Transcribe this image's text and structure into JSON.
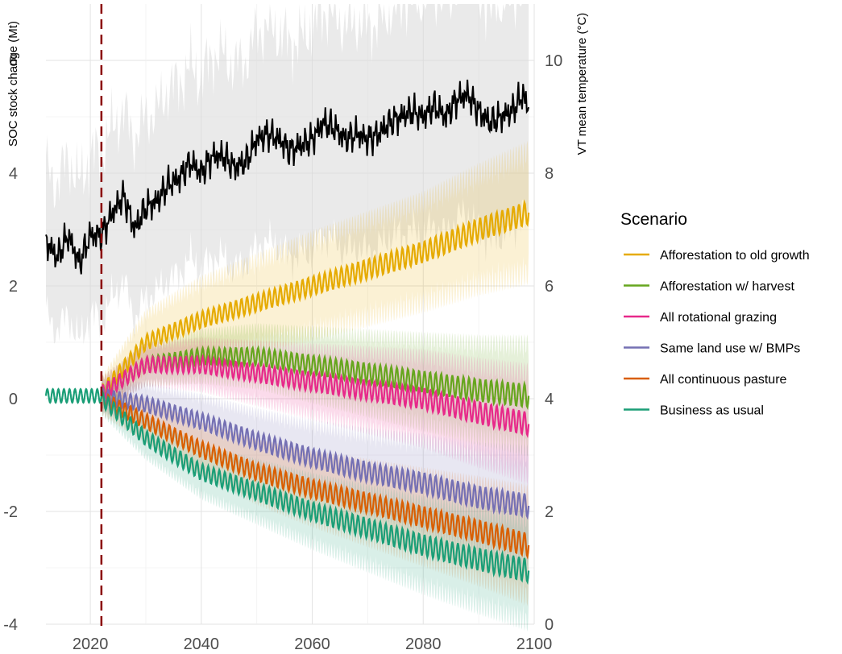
{
  "chart_data": {
    "type": "line",
    "x_label": "",
    "y_label": "SOC stock change (Mt)",
    "y2_label": "VT mean temperature (°C)",
    "x_range": [
      2012,
      2100
    ],
    "y_range": [
      -4,
      7
    ],
    "y2_range": [
      0,
      11
    ],
    "x_ticks": [
      "2020",
      "2040",
      "2060",
      "2080",
      "2100"
    ],
    "y_ticks": [
      "-4",
      "-2",
      "0",
      "2",
      "4",
      "6"
    ],
    "y2_ticks": [
      "0",
      "2",
      "4",
      "6",
      "8",
      "10"
    ],
    "grid": true,
    "reference_line": {
      "x": 2022,
      "style": "dashed",
      "color": "#8b0000"
    },
    "legend": {
      "title": "Scenario",
      "position": "right",
      "items": [
        {
          "name": "Afforestation to old growth",
          "color": "#e6ab02"
        },
        {
          "name": "Afforestation w/ harvest",
          "color": "#66a61e"
        },
        {
          "name": "All rotational grazing",
          "color": "#e7298a"
        },
        {
          "name": "Same land use w/ BMPs",
          "color": "#7570b3"
        },
        {
          "name": "All continuous pasture",
          "color": "#d95f02"
        },
        {
          "name": "Business as usual",
          "color": "#1b9e77"
        }
      ]
    },
    "series": [
      {
        "name": "Afforestation to old growth",
        "color": "#e6ab02",
        "x": [
          2022,
          2030,
          2040,
          2050,
          2060,
          2070,
          2080,
          2090,
          2099
        ],
        "y": [
          0.1,
          1.0,
          1.4,
          1.7,
          2.0,
          2.3,
          2.6,
          3.0,
          3.3
        ],
        "band": [
          0.3,
          0.6,
          0.8,
          0.9,
          1.0,
          1.05,
          1.1,
          1.2,
          1.3
        ]
      },
      {
        "name": "Afforestation w/ harvest",
        "color": "#66a61e",
        "x": [
          2022,
          2030,
          2040,
          2050,
          2060,
          2070,
          2080,
          2090,
          2099
        ],
        "y": [
          0.1,
          0.6,
          0.75,
          0.75,
          0.6,
          0.45,
          0.3,
          0.15,
          0.05
        ],
        "band": [
          0.3,
          0.4,
          0.5,
          0.6,
          0.7,
          0.8,
          0.9,
          1.0,
          1.1
        ]
      },
      {
        "name": "All rotational grazing",
        "color": "#e7298a",
        "x": [
          2022,
          2030,
          2040,
          2050,
          2060,
          2070,
          2080,
          2090,
          2099
        ],
        "y": [
          0.1,
          0.6,
          0.6,
          0.45,
          0.3,
          0.15,
          0.0,
          -0.25,
          -0.45
        ],
        "band": [
          0.3,
          0.4,
          0.5,
          0.6,
          0.7,
          0.8,
          0.9,
          1.0,
          1.1
        ]
      },
      {
        "name": "Same land use w/ BMPs",
        "color": "#7570b3",
        "x": [
          2022,
          2030,
          2040,
          2050,
          2060,
          2070,
          2080,
          2090,
          2099
        ],
        "y": [
          0.05,
          -0.1,
          -0.4,
          -0.75,
          -1.05,
          -1.3,
          -1.5,
          -1.75,
          -1.9
        ],
        "band": [
          0.3,
          0.4,
          0.5,
          0.6,
          0.7,
          0.8,
          0.9,
          1.0,
          1.1
        ]
      },
      {
        "name": "All continuous pasture",
        "color": "#d95f02",
        "x": [
          2022,
          2030,
          2040,
          2050,
          2060,
          2070,
          2080,
          2090,
          2099
        ],
        "y": [
          0.0,
          -0.4,
          -0.9,
          -1.3,
          -1.6,
          -1.85,
          -2.1,
          -2.35,
          -2.6
        ],
        "band": [
          0.3,
          0.4,
          0.5,
          0.6,
          0.7,
          0.8,
          0.9,
          1.0,
          1.1
        ]
      },
      {
        "name": "Business as usual",
        "color": "#1b9e77",
        "x": [
          2022,
          2030,
          2040,
          2050,
          2060,
          2070,
          2080,
          2090,
          2099
        ],
        "y": [
          0.0,
          -0.7,
          -1.3,
          -1.65,
          -2.0,
          -2.3,
          -2.6,
          -2.85,
          -3.05
        ],
        "band": [
          0.3,
          0.4,
          0.5,
          0.6,
          0.7,
          0.8,
          0.9,
          1.0,
          1.1
        ]
      }
    ],
    "baseline": {
      "x": [
        2012,
        2022
      ],
      "y": [
        0.05,
        0.05
      ],
      "color": "#1b9e77"
    },
    "temperature": {
      "color": "#000000",
      "band_color": "#d9d9d9",
      "x": [
        2012,
        2014,
        2016,
        2018,
        2020,
        2022,
        2024,
        2026,
        2028,
        2030,
        2032,
        2034,
        2036,
        2038,
        2040,
        2042,
        2044,
        2046,
        2048,
        2050,
        2052,
        2054,
        2056,
        2058,
        2060,
        2062,
        2064,
        2066,
        2068,
        2070,
        2072,
        2074,
        2076,
        2078,
        2080,
        2082,
        2084,
        2086,
        2088,
        2090,
        2092,
        2094,
        2096,
        2098,
        2099
      ],
      "y": [
        6.8,
        6.5,
        6.9,
        6.4,
        6.9,
        6.9,
        7.3,
        7.6,
        7.0,
        7.4,
        7.5,
        7.8,
        7.9,
        8.2,
        8.0,
        8.3,
        8.3,
        8.1,
        8.2,
        8.6,
        8.7,
        8.6,
        8.4,
        8.5,
        8.6,
        8.9,
        8.8,
        8.6,
        8.7,
        8.6,
        8.7,
        8.9,
        9.0,
        9.1,
        9.0,
        9.2,
        9.0,
        9.3,
        9.4,
        9.1,
        8.9,
        9.0,
        9.1,
        9.4,
        9.1
      ],
      "band": [
        1.3,
        1.3,
        1.4,
        1.4,
        1.4,
        1.5,
        1.5,
        1.5,
        1.6,
        1.6,
        1.6,
        1.7,
        1.7,
        1.7,
        1.7,
        1.8,
        1.8,
        1.8,
        1.8,
        1.9,
        1.9,
        1.9,
        1.9,
        1.9,
        2.0,
        2.0,
        2.0,
        2.0,
        2.0,
        2.0,
        2.0,
        2.0,
        2.1,
        2.1,
        2.1,
        2.1,
        2.1,
        2.1,
        2.1,
        2.1,
        2.1,
        2.1,
        2.1,
        2.1,
        2.1
      ]
    }
  }
}
